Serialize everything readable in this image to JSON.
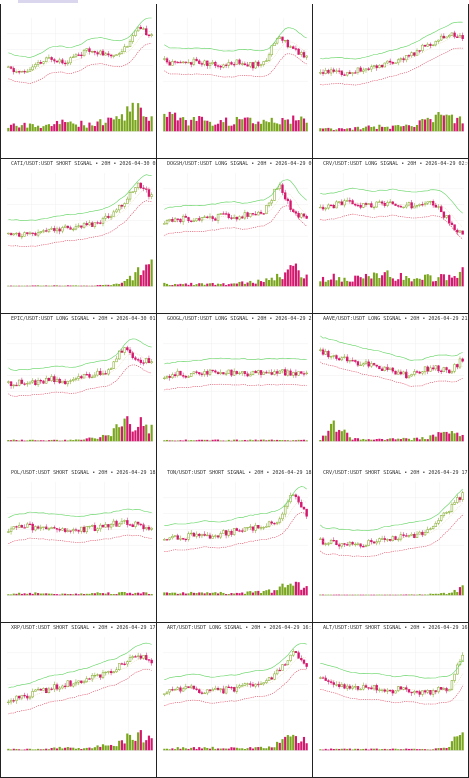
{
  "colors": {
    "up": "#7aa61e",
    "down": "#d4186e",
    "upper_band": "#5fd35f",
    "lower_band": "#e0405a",
    "mid_band": "#d9c38a",
    "grid": "#efefef",
    "axis": "#666666"
  },
  "chart_data": [
    {
      "type": "candlestick",
      "title": "",
      "seed": 11,
      "trend": [
        0.35,
        0.3,
        0.4,
        0.5,
        0.45,
        0.55,
        0.6,
        0.5,
        0.6,
        0.85,
        0.8
      ],
      "vol": [
        0.2,
        0.3,
        0.2,
        0.3,
        0.4,
        0.3,
        0.4,
        0.6,
        0.9,
        0.7
      ]
    },
    {
      "type": "candlestick",
      "title": "",
      "seed": 23,
      "trend": [
        0.45,
        0.4,
        0.45,
        0.42,
        0.4,
        0.45,
        0.4,
        0.42,
        0.8,
        0.6,
        0.5
      ],
      "vol": [
        0.7,
        0.5,
        0.5,
        0.4,
        0.4,
        0.5,
        0.4,
        0.5,
        0.6,
        0.5
      ]
    },
    {
      "type": "candlestick",
      "title": "",
      "seed": 37,
      "trend": [
        0.3,
        0.32,
        0.3,
        0.35,
        0.4,
        0.45,
        0.5,
        0.6,
        0.7,
        0.8,
        0.75
      ],
      "vol": [
        0.1,
        0.1,
        0.1,
        0.2,
        0.2,
        0.2,
        0.3,
        0.5,
        0.7,
        0.4
      ]
    },
    {
      "type": "candlestick",
      "title": "CATI/USDT:USDT SHORT SIGNAL • 20H • 2026-04-30 02:30",
      "seed": 41,
      "trend": [
        0.2,
        0.22,
        0.25,
        0.28,
        0.3,
        0.32,
        0.35,
        0.45,
        0.6,
        0.85,
        0.7
      ],
      "vol": [
        0.02,
        0.02,
        0.03,
        0.03,
        0.03,
        0.03,
        0.05,
        0.1,
        0.6,
        0.8
      ]
    },
    {
      "type": "candlestick",
      "title": "DOGSH/USDT:USDT LONG SIGNAL • 20H • 2026-04-29 01:00",
      "seed": 53,
      "trend": [
        0.4,
        0.42,
        0.4,
        0.42,
        0.45,
        0.45,
        0.48,
        0.5,
        0.85,
        0.5,
        0.45
      ],
      "vol": [
        0.1,
        0.1,
        0.1,
        0.1,
        0.1,
        0.15,
        0.2,
        0.3,
        0.9,
        0.4
      ]
    },
    {
      "type": "candlestick",
      "title": "CRV/USDT:USDT LONG SIGNAL • 20H • 2026-04-29 02:00",
      "seed": 67,
      "trend": [
        0.55,
        0.6,
        0.62,
        0.58,
        0.6,
        0.62,
        0.6,
        0.58,
        0.62,
        0.4,
        0.2
      ],
      "vol": [
        0.3,
        0.4,
        0.3,
        0.4,
        0.5,
        0.4,
        0.3,
        0.4,
        0.5,
        0.6
      ]
    },
    {
      "type": "candlestick",
      "title": "EPIC/USDT:USDT LONG SIGNAL • 20H • 2026-04-30 01:00",
      "seed": 79,
      "trend": [
        0.3,
        0.32,
        0.3,
        0.35,
        0.33,
        0.4,
        0.42,
        0.45,
        0.75,
        0.55,
        0.6
      ],
      "vol": [
        0.05,
        0.05,
        0.05,
        0.05,
        0.05,
        0.1,
        0.2,
        0.6,
        0.9,
        0.6
      ]
    },
    {
      "type": "candlestick",
      "title": "GOOGL/USDT:USDT LONG SIGNAL • 20H • 2026-04-29 21:00",
      "seed": 83,
      "trend": [
        0.4,
        0.42,
        0.41,
        0.43,
        0.42,
        0.44,
        0.43,
        0.42,
        0.44,
        0.43,
        0.42
      ],
      "vol": [
        0.05,
        0.05,
        0.05,
        0.05,
        0.05,
        0.05,
        0.05,
        0.05,
        0.05,
        0.05
      ]
    },
    {
      "type": "candlestick",
      "title": "AAVE/USDT:USDT LONG SIGNAL • 20H • 2026-04-29 21:00",
      "seed": 97,
      "trend": [
        0.7,
        0.65,
        0.6,
        0.55,
        0.5,
        0.45,
        0.4,
        0.45,
        0.5,
        0.45,
        0.6
      ],
      "vol": [
        0.05,
        0.8,
        0.1,
        0.1,
        0.1,
        0.1,
        0.1,
        0.2,
        0.4,
        0.3
      ]
    },
    {
      "type": "candlestick",
      "title": "POL/USDT:USDT SHORT SIGNAL • 20H • 2026-04-29 18:30",
      "seed": 101,
      "trend": [
        0.4,
        0.45,
        0.42,
        0.4,
        0.38,
        0.4,
        0.42,
        0.45,
        0.5,
        0.45,
        0.4
      ],
      "vol": [
        0.05,
        0.1,
        0.1,
        0.05,
        0.05,
        0.1,
        0.1,
        0.1,
        0.1,
        0.1
      ]
    },
    {
      "type": "candlestick",
      "title": "TON/USDT:USDT SHORT SIGNAL • 20H • 2026-04-29 18:00",
      "seed": 113,
      "trend": [
        0.3,
        0.28,
        0.32,
        0.3,
        0.35,
        0.38,
        0.4,
        0.45,
        0.5,
        0.85,
        0.6
      ],
      "vol": [
        0.1,
        0.1,
        0.1,
        0.1,
        0.1,
        0.1,
        0.15,
        0.2,
        0.5,
        0.3
      ]
    },
    {
      "type": "candlestick",
      "title": "CRV/USDT:USDT SHORT SIGNAL • 20H • 2026-04-29 17:30",
      "seed": 127,
      "trend": [
        0.25,
        0.22,
        0.2,
        0.22,
        0.25,
        0.28,
        0.3,
        0.35,
        0.45,
        0.65,
        0.85
      ],
      "vol": [
        0.02,
        0.02,
        0.02,
        0.02,
        0.02,
        0.02,
        0.03,
        0.05,
        0.1,
        0.3
      ]
    },
    {
      "type": "candlestick",
      "title": "XRP/USDT:USDT SHORT SIGNAL • 20H • 2026-04-29 17:30",
      "seed": 131,
      "trend": [
        0.2,
        0.25,
        0.3,
        0.35,
        0.4,
        0.45,
        0.5,
        0.55,
        0.65,
        0.75,
        0.7
      ],
      "vol": [
        0.05,
        0.05,
        0.05,
        0.1,
        0.1,
        0.1,
        0.2,
        0.3,
        0.8,
        0.5
      ]
    },
    {
      "type": "candlestick",
      "title": "ART/USDT:USDT LONG SIGNAL • 20H • 2026-04-29 16:30",
      "seed": 149,
      "trend": [
        0.3,
        0.32,
        0.35,
        0.3,
        0.32,
        0.35,
        0.4,
        0.45,
        0.55,
        0.8,
        0.65
      ],
      "vol": [
        0.05,
        0.1,
        0.1,
        0.1,
        0.1,
        0.1,
        0.1,
        0.2,
        0.6,
        0.4
      ]
    },
    {
      "type": "candlestick",
      "title": "ALT/USDT:USDT SHORT SIGNAL • 20H • 2026-04-29 16:30",
      "seed": 157,
      "trend": [
        0.45,
        0.4,
        0.35,
        0.38,
        0.35,
        0.32,
        0.35,
        0.3,
        0.32,
        0.35,
        0.8
      ],
      "vol": [
        0.05,
        0.05,
        0.05,
        0.05,
        0.05,
        0.05,
        0.05,
        0.05,
        0.1,
        0.8
      ]
    }
  ]
}
